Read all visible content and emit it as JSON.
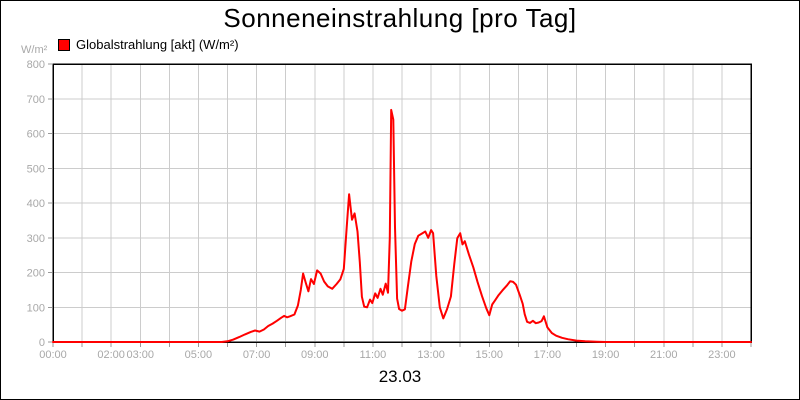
{
  "chart_data": {
    "type": "line",
    "title": "Sonneneinstrahlung [pro Tag]",
    "xlabel": "23.03",
    "ylabel": "W/m²",
    "legend_label": "Globalstrahlung [akt] (W/m²)",
    "legend_position": "top-left",
    "grid": true,
    "ylim": [
      0,
      800
    ],
    "y_ticks": [
      {
        "value": 800,
        "label": "800"
      },
      {
        "value": 700,
        "label": "700"
      },
      {
        "value": 600,
        "label": "600"
      },
      {
        "value": 500,
        "label": "500"
      },
      {
        "value": 400,
        "label": "400"
      },
      {
        "value": 300,
        "label": "300"
      },
      {
        "value": 200,
        "label": "200"
      },
      {
        "value": 100,
        "label": "100"
      },
      {
        "value": 0,
        "label": "0"
      }
    ],
    "x_range_hours": [
      0,
      24
    ],
    "x_grid_step_hours": 1,
    "x_tick_labels": [
      {
        "hour": 0,
        "label": "00:00"
      },
      {
        "hour": 2,
        "label": "02:00"
      },
      {
        "hour": 3,
        "label": "03:00"
      },
      {
        "hour": 5,
        "label": "05:00"
      },
      {
        "hour": 7,
        "label": "07:00"
      },
      {
        "hour": 9,
        "label": "09:00"
      },
      {
        "hour": 11,
        "label": "11:00"
      },
      {
        "hour": 13,
        "label": "13:00"
      },
      {
        "hour": 15,
        "label": "15:00"
      },
      {
        "hour": 17,
        "label": "17:00"
      },
      {
        "hour": 19,
        "label": "19:00"
      },
      {
        "hour": 21,
        "label": "21:00"
      },
      {
        "hour": 23,
        "label": "23:00"
      }
    ],
    "colors": {
      "series": "#ff0000",
      "grid": "#cccccc",
      "axis": "#000000",
      "tick": "#999999",
      "tick_label": "#a8a8a8",
      "text": "#000000",
      "background": "#ffffff"
    },
    "series": [
      {
        "name": "Globalstrahlung [akt] (W/m²)",
        "color": "#ff0000",
        "points": [
          [
            0,
            0
          ],
          [
            0.5,
            0
          ],
          [
            1,
            0
          ],
          [
            1.5,
            0
          ],
          [
            2,
            0
          ],
          [
            2.5,
            0
          ],
          [
            3,
            0
          ],
          [
            3.5,
            0
          ],
          [
            4,
            0
          ],
          [
            4.5,
            0
          ],
          [
            5,
            0
          ],
          [
            5.4,
            0
          ],
          [
            5.8,
            0
          ],
          [
            6,
            2
          ],
          [
            6.2,
            7
          ],
          [
            6.4,
            14
          ],
          [
            6.6,
            22
          ],
          [
            6.8,
            29
          ],
          [
            6.95,
            33
          ],
          [
            7.1,
            30
          ],
          [
            7.25,
            36
          ],
          [
            7.4,
            46
          ],
          [
            7.55,
            53
          ],
          [
            7.7,
            61
          ],
          [
            7.85,
            70
          ],
          [
            7.95,
            75
          ],
          [
            8.05,
            71
          ],
          [
            8.15,
            74
          ],
          [
            8.3,
            79
          ],
          [
            8.42,
            105
          ],
          [
            8.52,
            150
          ],
          [
            8.6,
            197
          ],
          [
            8.7,
            168
          ],
          [
            8.78,
            146
          ],
          [
            8.87,
            181
          ],
          [
            8.97,
            167
          ],
          [
            9.08,
            206
          ],
          [
            9.2,
            197
          ],
          [
            9.32,
            174
          ],
          [
            9.45,
            160
          ],
          [
            9.6,
            153
          ],
          [
            9.75,
            167
          ],
          [
            9.88,
            180
          ],
          [
            10,
            210
          ],
          [
            10.1,
            330
          ],
          [
            10.18,
            425
          ],
          [
            10.28,
            352
          ],
          [
            10.37,
            370
          ],
          [
            10.47,
            318
          ],
          [
            10.55,
            230
          ],
          [
            10.62,
            130
          ],
          [
            10.7,
            102
          ],
          [
            10.8,
            100
          ],
          [
            10.9,
            122
          ],
          [
            10.98,
            112
          ],
          [
            11.08,
            140
          ],
          [
            11.16,
            127
          ],
          [
            11.26,
            153
          ],
          [
            11.34,
            136
          ],
          [
            11.44,
            168
          ],
          [
            11.52,
            142
          ],
          [
            11.58,
            300
          ],
          [
            11.63,
            668
          ],
          [
            11.7,
            640
          ],
          [
            11.76,
            330
          ],
          [
            11.83,
            125
          ],
          [
            11.9,
            95
          ],
          [
            12,
            90
          ],
          [
            12.1,
            94
          ],
          [
            12.2,
            158
          ],
          [
            12.32,
            232
          ],
          [
            12.44,
            282
          ],
          [
            12.56,
            306
          ],
          [
            12.68,
            312
          ],
          [
            12.8,
            318
          ],
          [
            12.9,
            300
          ],
          [
            13,
            322
          ],
          [
            13.07,
            313
          ],
          [
            13.18,
            190
          ],
          [
            13.3,
            100
          ],
          [
            13.42,
            68
          ],
          [
            13.55,
            95
          ],
          [
            13.68,
            131
          ],
          [
            13.8,
            225
          ],
          [
            13.9,
            299
          ],
          [
            14,
            313
          ],
          [
            14.08,
            281
          ],
          [
            14.16,
            290
          ],
          [
            14.3,
            252
          ],
          [
            14.45,
            215
          ],
          [
            14.6,
            172
          ],
          [
            14.75,
            132
          ],
          [
            14.9,
            97
          ],
          [
            15,
            77
          ],
          [
            15.1,
            108
          ],
          [
            15.2,
            120
          ],
          [
            15.32,
            135
          ],
          [
            15.45,
            148
          ],
          [
            15.6,
            162
          ],
          [
            15.72,
            175
          ],
          [
            15.82,
            173
          ],
          [
            15.92,
            165
          ],
          [
            16.05,
            135
          ],
          [
            16.15,
            110
          ],
          [
            16.22,
            80
          ],
          [
            16.3,
            58
          ],
          [
            16.4,
            55
          ],
          [
            16.5,
            61
          ],
          [
            16.6,
            54
          ],
          [
            16.7,
            56
          ],
          [
            16.8,
            60
          ],
          [
            16.88,
            74
          ],
          [
            17,
            42
          ],
          [
            17.15,
            26
          ],
          [
            17.3,
            18
          ],
          [
            17.5,
            12
          ],
          [
            17.7,
            8
          ],
          [
            18,
            4
          ],
          [
            18.3,
            2
          ],
          [
            18.7,
            1
          ],
          [
            19,
            0
          ],
          [
            19.5,
            0
          ],
          [
            20,
            0
          ],
          [
            20.5,
            0
          ],
          [
            21,
            0
          ],
          [
            21.5,
            0
          ],
          [
            22,
            0
          ],
          [
            22.5,
            0
          ],
          [
            23,
            0
          ],
          [
            23.5,
            0
          ],
          [
            24,
            0
          ]
        ]
      }
    ]
  }
}
